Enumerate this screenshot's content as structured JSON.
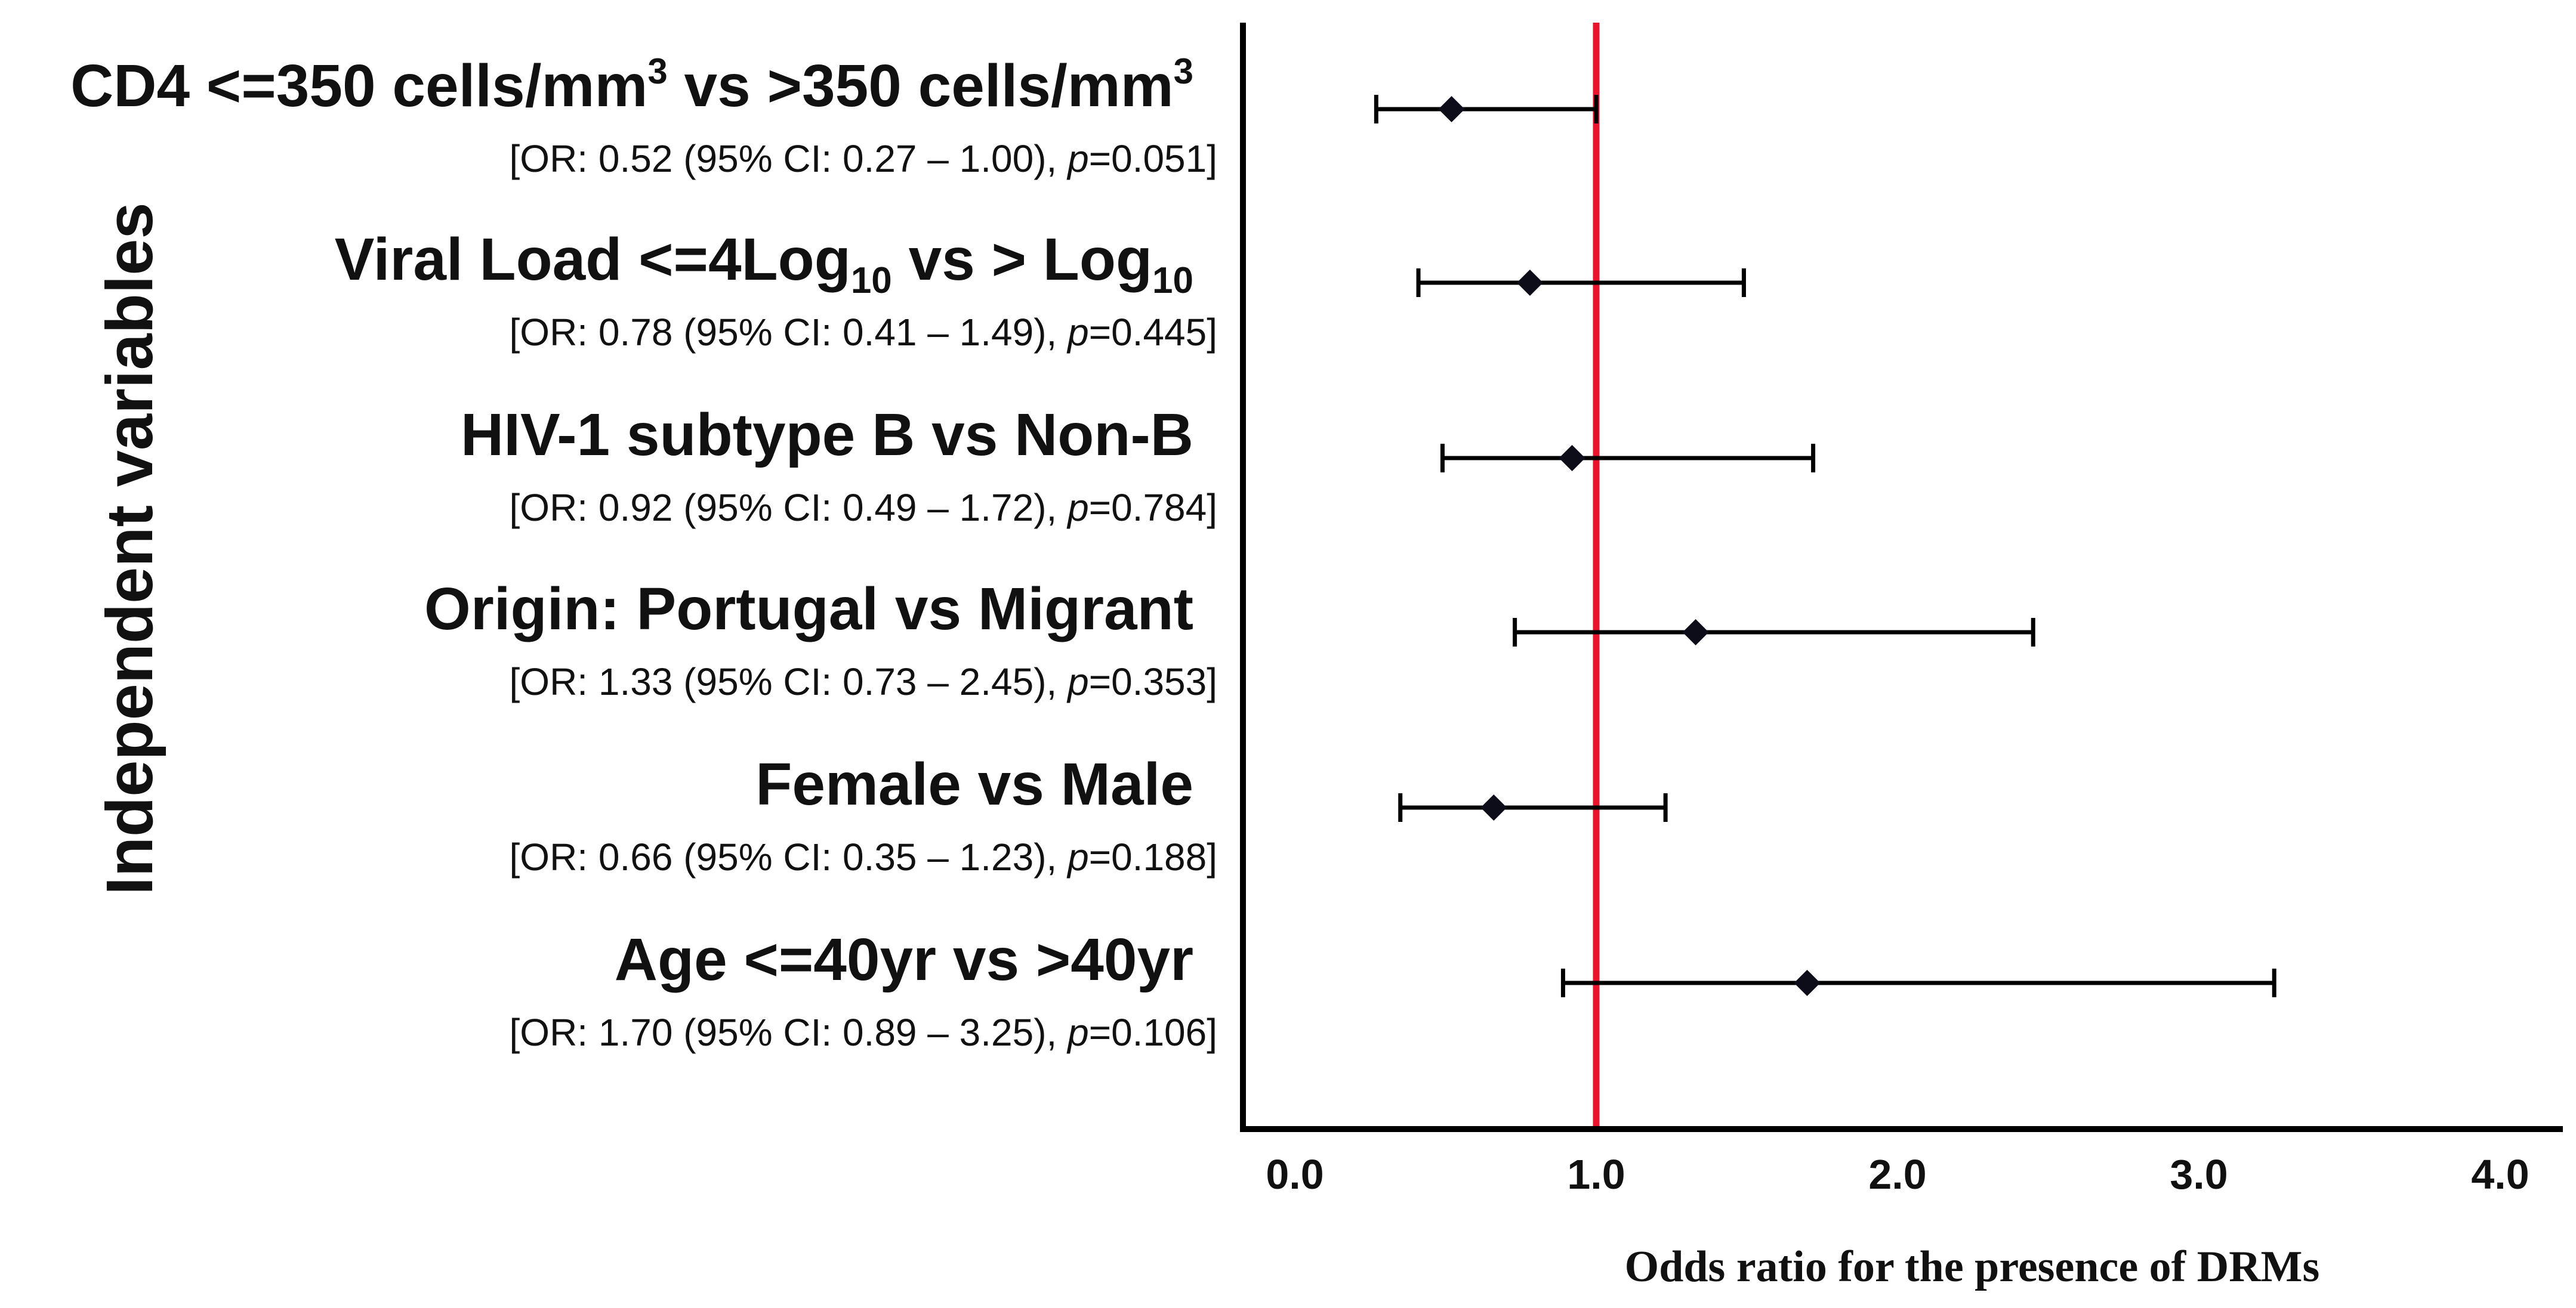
{
  "chart_data": {
    "type": "forest",
    "xlabel": "Odds ratio for the presence of DRMs",
    "ylabel": "Independent variables",
    "xlim": [
      0.0,
      4.0
    ],
    "xticks": [
      "0.0",
      "1.0",
      "2.0",
      "3.0",
      "4.0"
    ],
    "reference_line": 1.0,
    "reference_color": "#e8142c",
    "marker_color": "#0d0d1a",
    "rows": [
      {
        "label_main": "CD4 <=350 cells/mm",
        "label_sup1": "3",
        "label_mid": " vs >350 cells/mm",
        "label_sup2": "3",
        "or": 0.52,
        "ci_low": 0.27,
        "ci_high": 1.0,
        "p": "0.051",
        "stat_prefix": "[OR: 0.52 (95% CI: 0.27 – 1.00), ",
        "stat_p_italic": "p",
        "stat_suffix": "=0.051]"
      },
      {
        "label_main": "Viral Load <=4Log",
        "label_sub1": "10",
        "label_mid": " vs > Log",
        "label_sub2": "10",
        "or": 0.78,
        "ci_low": 0.41,
        "ci_high": 1.49,
        "p": "0.445",
        "stat_prefix": "[OR: 0.78 (95% CI: 0.41 – 1.49), ",
        "stat_p_italic": "p",
        "stat_suffix": "=0.445]"
      },
      {
        "label_main": "HIV-1 subtype B vs Non-B",
        "or": 0.92,
        "ci_low": 0.49,
        "ci_high": 1.72,
        "p": "0.784",
        "stat_prefix": "[OR: 0.92 (95% CI: 0.49 – 1.72), ",
        "stat_p_italic": "p",
        "stat_suffix": "=0.784]"
      },
      {
        "label_main": "Origin: Portugal vs Migrant",
        "or": 1.33,
        "ci_low": 0.73,
        "ci_high": 2.45,
        "p": "0.353",
        "stat_prefix": "[OR: 1.33 (95% CI: 0.73 – 2.45), ",
        "stat_p_italic": "p",
        "stat_suffix": "=0.353]"
      },
      {
        "label_main": "Female vs Male",
        "or": 0.66,
        "ci_low": 0.35,
        "ci_high": 1.23,
        "p": "0.188",
        "stat_prefix": "[OR: 0.66 (95% CI: 0.35 – 1.23), ",
        "stat_p_italic": "p",
        "stat_suffix": "=0.188]"
      },
      {
        "label_main": "Age <=40yr vs >40yr",
        "or": 1.7,
        "ci_low": 0.89,
        "ci_high": 3.25,
        "p": "0.106",
        "stat_prefix": "[OR: 1.70 (95% CI: 0.89 – 3.25), ",
        "stat_p_italic": "p",
        "stat_suffix": "=0.106]"
      }
    ]
  }
}
